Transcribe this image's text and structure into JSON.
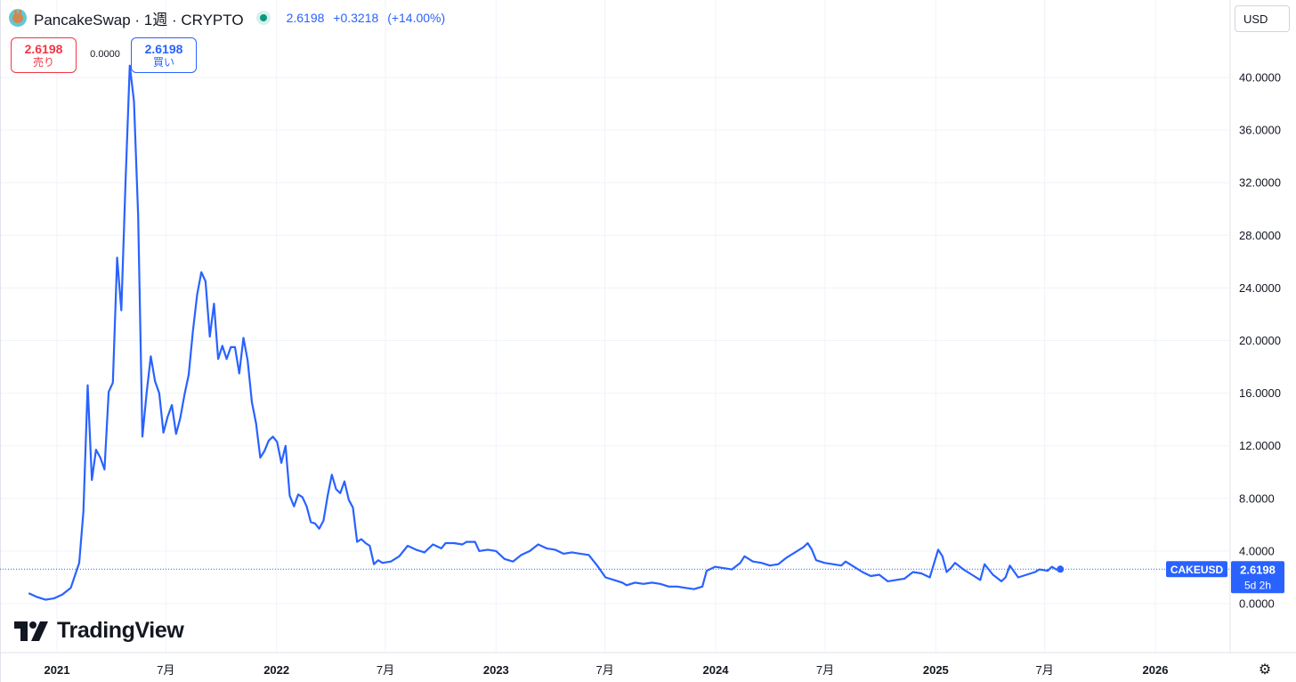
{
  "header": {
    "symbol_title": "PancakeSwap · 1週 · CRYPTO",
    "last_price": "2.6198",
    "change": "+0.3218",
    "change_pct": "(+14.00%)",
    "logo_icon": "pancakeswap-bunny-icon",
    "status_color": "#089981"
  },
  "trade": {
    "sell_price": "2.6198",
    "sell_label": "売り",
    "spread": "0.0000",
    "buy_price": "2.6198",
    "buy_label": "買い"
  },
  "currency": "USD",
  "brand": "TradingView",
  "colors": {
    "line": "#2962ff",
    "accent": "#2962ff",
    "sell": "#f23645",
    "grid": "#f0f3fa"
  },
  "price_label": {
    "symbol": "CAKEUSD",
    "price": "2.6198",
    "countdown": "5d 2h"
  },
  "chart_data": {
    "type": "line",
    "title": "PancakeSwap · 1週 · CRYPTO",
    "xlabel": "",
    "ylabel": "",
    "ylim": [
      -1.5,
      44.1
    ],
    "y_ticks": [
      0,
      4,
      8,
      12,
      16,
      20,
      24,
      28,
      32,
      36,
      40
    ],
    "y_tick_labels": [
      "0.0000",
      "4.0000",
      "8.0000",
      "12.0000",
      "16.0000",
      "20.0000",
      "24.0000",
      "28.0000",
      "32.0000",
      "36.0000",
      "40.0000"
    ],
    "x_ticks": [
      {
        "label": "2021",
        "date": "2021-01-01",
        "bold": true
      },
      {
        "label": "7月",
        "date": "2021-07-01",
        "bold": false
      },
      {
        "label": "2022",
        "date": "2022-01-01",
        "bold": true
      },
      {
        "label": "7月",
        "date": "2022-07-01",
        "bold": false
      },
      {
        "label": "2023",
        "date": "2023-01-01",
        "bold": true
      },
      {
        "label": "7月",
        "date": "2023-07-01",
        "bold": false
      },
      {
        "label": "2024",
        "date": "2024-01-01",
        "bold": true
      },
      {
        "label": "7月",
        "date": "2024-07-01",
        "bold": false
      },
      {
        "label": "2025",
        "date": "2025-01-01",
        "bold": true
      },
      {
        "label": "7月",
        "date": "2025-07-01",
        "bold": false
      },
      {
        "label": "2026",
        "date": "2026-01-01",
        "bold": true
      }
    ],
    "grid": true,
    "series": [
      {
        "name": "CAKEUSD",
        "points": [
          [
            "2020-11-15",
            0.8
          ],
          [
            "2020-11-29",
            0.5
          ],
          [
            "2020-12-13",
            0.3
          ],
          [
            "2020-12-27",
            0.4
          ],
          [
            "2021-01-10",
            0.7
          ],
          [
            "2021-01-24",
            1.2
          ],
          [
            "2021-02-07",
            3.1
          ],
          [
            "2021-02-14",
            7.0
          ],
          [
            "2021-02-21",
            16.6
          ],
          [
            "2021-02-28",
            9.4
          ],
          [
            "2021-03-07",
            11.7
          ],
          [
            "2021-03-14",
            11.1
          ],
          [
            "2021-03-21",
            10.2
          ],
          [
            "2021-03-28",
            16.1
          ],
          [
            "2021-04-04",
            16.8
          ],
          [
            "2021-04-11",
            26.3
          ],
          [
            "2021-04-18",
            22.3
          ],
          [
            "2021-04-25",
            32.0
          ],
          [
            "2021-05-02",
            40.9
          ],
          [
            "2021-05-09",
            38.2
          ],
          [
            "2021-05-16",
            29.5
          ],
          [
            "2021-05-23",
            12.7
          ],
          [
            "2021-05-30",
            16.0
          ],
          [
            "2021-06-06",
            18.8
          ],
          [
            "2021-06-13",
            16.9
          ],
          [
            "2021-06-20",
            16.0
          ],
          [
            "2021-06-27",
            13.0
          ],
          [
            "2021-07-04",
            14.2
          ],
          [
            "2021-07-11",
            15.1
          ],
          [
            "2021-07-18",
            12.9
          ],
          [
            "2021-07-25",
            14.1
          ],
          [
            "2021-08-01",
            15.9
          ],
          [
            "2021-08-08",
            17.4
          ],
          [
            "2021-08-15",
            20.7
          ],
          [
            "2021-08-22",
            23.5
          ],
          [
            "2021-08-29",
            25.2
          ],
          [
            "2021-09-05",
            24.5
          ],
          [
            "2021-09-12",
            20.3
          ],
          [
            "2021-09-19",
            22.8
          ],
          [
            "2021-09-26",
            18.6
          ],
          [
            "2021-10-03",
            19.6
          ],
          [
            "2021-10-10",
            18.6
          ],
          [
            "2021-10-17",
            19.5
          ],
          [
            "2021-10-24",
            19.5
          ],
          [
            "2021-10-31",
            17.5
          ],
          [
            "2021-11-07",
            20.2
          ],
          [
            "2021-11-14",
            18.5
          ],
          [
            "2021-11-21",
            15.3
          ],
          [
            "2021-11-28",
            13.7
          ],
          [
            "2021-12-05",
            11.1
          ],
          [
            "2021-12-12",
            11.6
          ],
          [
            "2021-12-19",
            12.4
          ],
          [
            "2021-12-26",
            12.7
          ],
          [
            "2022-01-02",
            12.3
          ],
          [
            "2022-01-09",
            10.7
          ],
          [
            "2022-01-16",
            12.0
          ],
          [
            "2022-01-23",
            8.2
          ],
          [
            "2022-01-30",
            7.4
          ],
          [
            "2022-02-06",
            8.3
          ],
          [
            "2022-02-13",
            8.1
          ],
          [
            "2022-02-20",
            7.4
          ],
          [
            "2022-02-27",
            6.2
          ],
          [
            "2022-03-06",
            6.1
          ],
          [
            "2022-03-13",
            5.7
          ],
          [
            "2022-03-20",
            6.3
          ],
          [
            "2022-03-27",
            8.2
          ],
          [
            "2022-04-03",
            9.8
          ],
          [
            "2022-04-10",
            8.7
          ],
          [
            "2022-04-17",
            8.4
          ],
          [
            "2022-04-24",
            9.3
          ],
          [
            "2022-05-01",
            7.9
          ],
          [
            "2022-05-08",
            7.3
          ],
          [
            "2022-05-15",
            4.7
          ],
          [
            "2022-05-22",
            4.9
          ],
          [
            "2022-05-29",
            4.6
          ],
          [
            "2022-06-05",
            4.4
          ],
          [
            "2022-06-12",
            3.0
          ],
          [
            "2022-06-19",
            3.3
          ],
          [
            "2022-06-26",
            3.1
          ],
          [
            "2022-07-10",
            3.2
          ],
          [
            "2022-07-24",
            3.6
          ],
          [
            "2022-08-07",
            4.4
          ],
          [
            "2022-08-21",
            4.1
          ],
          [
            "2022-09-04",
            3.9
          ],
          [
            "2022-09-18",
            4.5
          ],
          [
            "2022-10-02",
            4.2
          ],
          [
            "2022-10-09",
            4.6
          ],
          [
            "2022-10-23",
            4.6
          ],
          [
            "2022-11-06",
            4.5
          ],
          [
            "2022-11-13",
            4.7
          ],
          [
            "2022-11-27",
            4.7
          ],
          [
            "2022-12-04",
            4.0
          ],
          [
            "2022-12-18",
            4.1
          ],
          [
            "2023-01-01",
            4.0
          ],
          [
            "2023-01-15",
            3.4
          ],
          [
            "2023-01-29",
            3.2
          ],
          [
            "2023-02-12",
            3.7
          ],
          [
            "2023-02-26",
            4.0
          ],
          [
            "2023-03-12",
            4.5
          ],
          [
            "2023-03-26",
            4.2
          ],
          [
            "2023-04-09",
            4.1
          ],
          [
            "2023-04-23",
            3.8
          ],
          [
            "2023-05-07",
            3.9
          ],
          [
            "2023-05-21",
            3.8
          ],
          [
            "2023-06-04",
            3.7
          ],
          [
            "2023-06-18",
            2.9
          ],
          [
            "2023-07-02",
            2.0
          ],
          [
            "2023-07-16",
            1.8
          ],
          [
            "2023-07-30",
            1.6
          ],
          [
            "2023-08-06",
            1.4
          ],
          [
            "2023-08-20",
            1.6
          ],
          [
            "2023-09-03",
            1.5
          ],
          [
            "2023-09-17",
            1.6
          ],
          [
            "2023-10-01",
            1.5
          ],
          [
            "2023-10-15",
            1.3
          ],
          [
            "2023-10-29",
            1.3
          ],
          [
            "2023-11-12",
            1.2
          ],
          [
            "2023-11-26",
            1.1
          ],
          [
            "2023-12-10",
            1.3
          ],
          [
            "2023-12-17",
            2.5
          ],
          [
            "2023-12-31",
            2.8
          ],
          [
            "2024-01-14",
            2.7
          ],
          [
            "2024-01-28",
            2.6
          ],
          [
            "2024-02-11",
            3.1
          ],
          [
            "2024-02-18",
            3.6
          ],
          [
            "2024-03-03",
            3.2
          ],
          [
            "2024-03-17",
            3.1
          ],
          [
            "2024-03-31",
            2.9
          ],
          [
            "2024-04-14",
            3.0
          ],
          [
            "2024-04-28",
            3.5
          ],
          [
            "2024-05-12",
            3.9
          ],
          [
            "2024-05-26",
            4.3
          ],
          [
            "2024-06-02",
            4.6
          ],
          [
            "2024-06-09",
            4.1
          ],
          [
            "2024-06-16",
            3.3
          ],
          [
            "2024-06-30",
            3.1
          ],
          [
            "2024-07-14",
            3.0
          ],
          [
            "2024-07-28",
            2.9
          ],
          [
            "2024-08-04",
            3.2
          ],
          [
            "2024-08-18",
            2.8
          ],
          [
            "2024-09-01",
            2.4
          ],
          [
            "2024-09-15",
            2.1
          ],
          [
            "2024-09-29",
            2.2
          ],
          [
            "2024-10-13",
            1.7
          ],
          [
            "2024-10-27",
            1.8
          ],
          [
            "2024-11-10",
            1.9
          ],
          [
            "2024-11-24",
            2.4
          ],
          [
            "2024-12-08",
            2.3
          ],
          [
            "2024-12-22",
            2.0
          ],
          [
            "2025-01-05",
            4.1
          ],
          [
            "2025-01-12",
            3.6
          ],
          [
            "2025-01-19",
            2.4
          ],
          [
            "2025-01-26",
            2.7
          ],
          [
            "2025-02-02",
            3.1
          ],
          [
            "2025-02-16",
            2.6
          ],
          [
            "2025-03-02",
            2.2
          ],
          [
            "2025-03-16",
            1.8
          ],
          [
            "2025-03-23",
            3.0
          ],
          [
            "2025-04-06",
            2.2
          ],
          [
            "2025-04-20",
            1.7
          ],
          [
            "2025-04-27",
            2.0
          ],
          [
            "2025-05-04",
            2.9
          ],
          [
            "2025-05-18",
            2.0
          ],
          [
            "2025-06-01",
            2.2
          ],
          [
            "2025-06-15",
            2.4
          ],
          [
            "2025-06-22",
            2.6
          ],
          [
            "2025-07-06",
            2.5
          ],
          [
            "2025-07-13",
            2.8
          ],
          [
            "2025-07-20",
            2.6
          ],
          [
            "2025-07-27",
            2.62
          ]
        ]
      }
    ],
    "last_value": 2.6198
  }
}
